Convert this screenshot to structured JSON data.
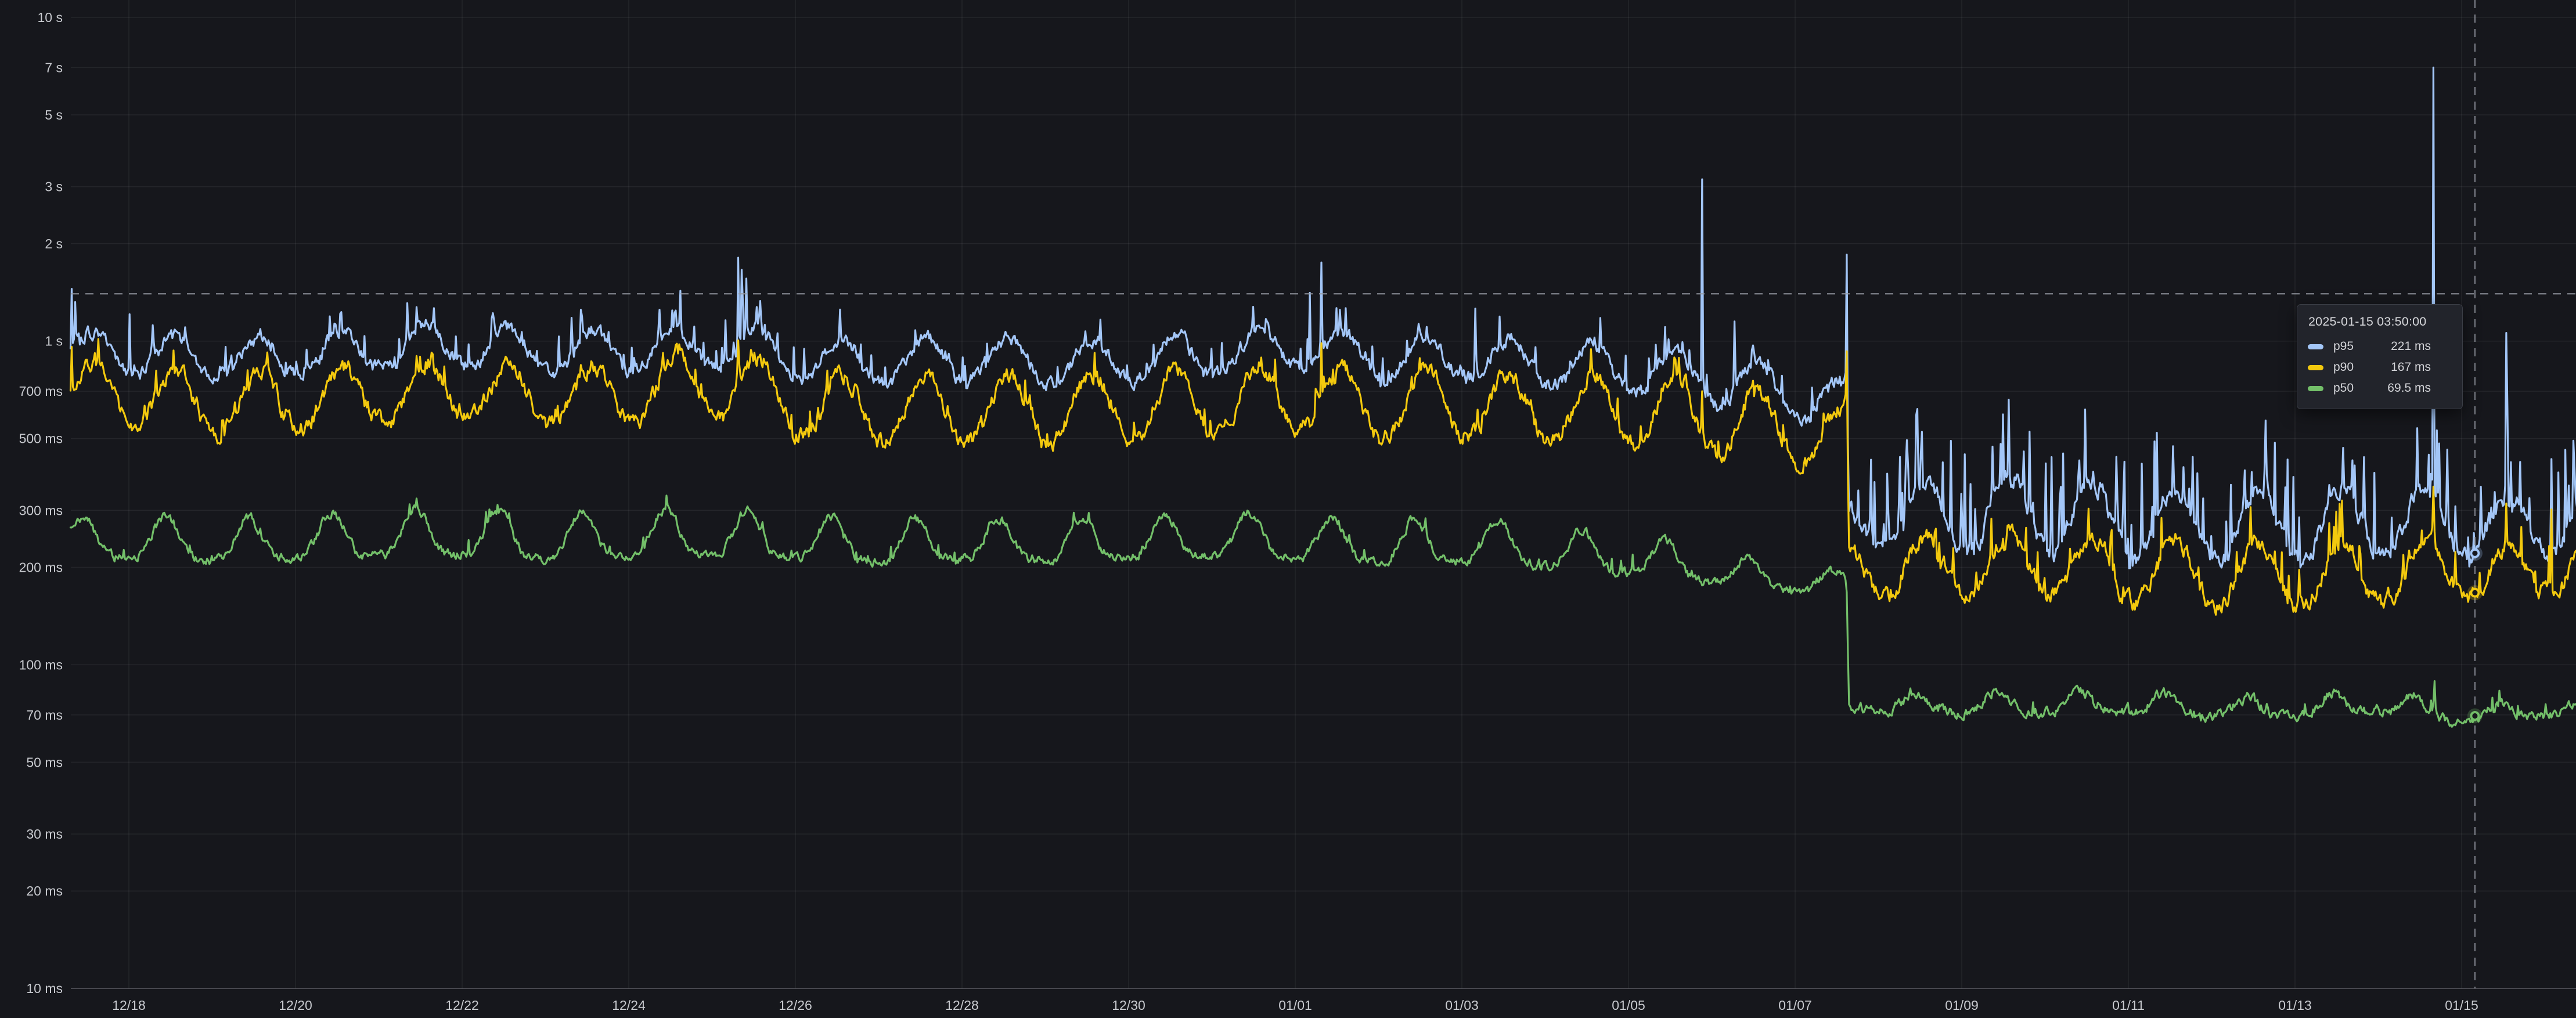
{
  "panel": {
    "background": "#16171c",
    "grid_color": "rgba(204,204,220,0.08)",
    "axis_line_color": "rgba(204,204,220,0.22)",
    "axis_text_color": "#c7c9ce",
    "crosshair_color": "rgba(150,154,163,0.75)"
  },
  "tooltip": {
    "timestamp": "2025-01-15 03:50:00",
    "rows": [
      {
        "label": "p95",
        "value": "221 ms",
        "ms": 221,
        "color": "#a3c6f7"
      },
      {
        "label": "p90",
        "value": "167 ms",
        "ms": 167,
        "color": "#f3c90e"
      },
      {
        "label": "p50",
        "value": "69.5 ms",
        "ms": 69.5,
        "color": "#73bf69"
      }
    ]
  },
  "crosshair": {
    "hour": 699.83,
    "y_ms": 1400,
    "time_label": "2025-01-15 03:50:00"
  },
  "chart_data": {
    "type": "line",
    "title": "",
    "unit": "ms",
    "sample_interval_minutes": 20,
    "time_start_hour": 7.2,
    "time_end_hour": 729.5,
    "step_change_hour": 519,
    "x_axis": {
      "start_date": "2024-12-17",
      "ticks": [
        {
          "label": "12/18",
          "day": 1
        },
        {
          "label": "12/20",
          "day": 3
        },
        {
          "label": "12/22",
          "day": 5
        },
        {
          "label": "12/24",
          "day": 7
        },
        {
          "label": "12/26",
          "day": 9
        },
        {
          "label": "12/28",
          "day": 11
        },
        {
          "label": "12/30",
          "day": 13
        },
        {
          "label": "01/01",
          "day": 15
        },
        {
          "label": "01/03",
          "day": 17
        },
        {
          "label": "01/05",
          "day": 19
        },
        {
          "label": "01/07",
          "day": 21
        },
        {
          "label": "01/09",
          "day": 23
        },
        {
          "label": "01/11",
          "day": 25
        },
        {
          "label": "01/13",
          "day": 27
        },
        {
          "label": "01/15",
          "day": 29
        }
      ]
    },
    "y_axis": {
      "scale": "log10",
      "min_ms": 10,
      "max_ms": 10000,
      "ticks": [
        {
          "label": "10 s",
          "ms": 10000
        },
        {
          "label": "7 s",
          "ms": 7000
        },
        {
          "label": "5 s",
          "ms": 5000
        },
        {
          "label": "3 s",
          "ms": 3000
        },
        {
          "label": "2 s",
          "ms": 2000
        },
        {
          "label": "1 s",
          "ms": 1000
        },
        {
          "label": "700 ms",
          "ms": 700
        },
        {
          "label": "500 ms",
          "ms": 500
        },
        {
          "label": "300 ms",
          "ms": 300
        },
        {
          "label": "200 ms",
          "ms": 200
        },
        {
          "label": "100 ms",
          "ms": 100
        },
        {
          "label": "70 ms",
          "ms": 70
        },
        {
          "label": "50 ms",
          "ms": 50
        },
        {
          "label": "30 ms",
          "ms": 30
        },
        {
          "label": "20 ms",
          "ms": 20
        },
        {
          "label": "10 ms",
          "ms": 10
        }
      ]
    },
    "series": [
      {
        "name": "p95",
        "color": "#a3c6f7",
        "width": 3.2,
        "shape": {
          "peak_hour": 13.5,
          "exp": 1.3
        },
        "noise": {
          "pre": {
            "jitter": 0.05,
            "burst_p": 0.1,
            "burst_amp": 0.12
          },
          "post": {
            "jitter": 0.065,
            "burst_p": 0.17,
            "burst_amp": 0.45
          }
        },
        "envelope": [
          [
            0,
            830,
            1120
          ],
          [
            24,
            800,
            1060
          ],
          [
            48,
            775,
            1020
          ],
          [
            72,
            790,
            1060
          ],
          [
            96,
            820,
            1100
          ],
          [
            120,
            845,
            1150
          ],
          [
            144,
            800,
            1050
          ],
          [
            168,
            810,
            1090
          ],
          [
            192,
            830,
            1130
          ],
          [
            216,
            780,
            1050
          ],
          [
            240,
            745,
            1000
          ],
          [
            264,
            760,
            1020
          ],
          [
            288,
            745,
            1000
          ],
          [
            312,
            760,
            1020
          ],
          [
            336,
            780,
            1060
          ],
          [
            360,
            820,
            1120
          ],
          [
            384,
            760,
            1030
          ],
          [
            408,
            770,
            1050
          ],
          [
            432,
            745,
            1000
          ],
          [
            456,
            705,
            970
          ],
          [
            480,
            640,
            940
          ],
          [
            504,
            565,
            810
          ],
          [
            518.8,
            555,
            780
          ],
          [
            519.4,
            238,
            312
          ],
          [
            528,
            228,
            330
          ],
          [
            552,
            222,
            385
          ],
          [
            576,
            226,
            400
          ],
          [
            600,
            215,
            355
          ],
          [
            624,
            213,
            345
          ],
          [
            648,
            210,
            335
          ],
          [
            672,
            215,
            355
          ],
          [
            696,
            219,
            355
          ],
          [
            700,
            217,
            330
          ],
          [
            720,
            222,
            335
          ],
          [
            730,
            230,
            345
          ]
        ],
        "spikes": [
          [
            7.6,
            1450
          ],
          [
            8.4,
            1320
          ],
          [
            24.2,
            1210
          ],
          [
            31,
            1120
          ],
          [
            104.3,
            1310
          ],
          [
            129,
            1220
          ],
          [
            151.5,
            1180
          ],
          [
            177,
            1250
          ],
          [
            183,
            1430
          ],
          [
            196,
            1160
          ],
          [
            199.6,
            1810
          ],
          [
            200.4,
            1660
          ],
          [
            201.7,
            1560
          ],
          [
            206,
            1330
          ],
          [
            352,
            1150
          ],
          [
            364.3,
            1410
          ],
          [
            367.5,
            1750
          ],
          [
            373,
            1250
          ],
          [
            412,
            1260
          ],
          [
            477.35,
            3160
          ],
          [
            486.5,
            1150
          ],
          [
            492,
            970
          ],
          [
            518.9,
            1850
          ],
          [
            526,
            430
          ],
          [
            536,
            412
          ],
          [
            549,
            492
          ],
          [
            553,
            447
          ],
          [
            561,
            472
          ],
          [
            565.4,
            508
          ],
          [
            570,
            456
          ],
          [
            578,
            438
          ],
          [
            586,
            428
          ],
          [
            604,
            418
          ],
          [
            616,
            408
          ],
          [
            640,
            388
          ],
          [
            662,
            468
          ],
          [
            668,
            438
          ],
          [
            688,
            7000
          ],
          [
            689,
            530
          ],
          [
            692,
            462
          ],
          [
            708.7,
            1060
          ],
          [
            722,
            432
          ],
          [
            728.6,
            405
          ]
        ]
      },
      {
        "name": "p90",
        "color": "#f3c90e",
        "width": 3.2,
        "shape": {
          "peak_hour": 13.5,
          "exp": 1.3
        },
        "noise": {
          "pre": {
            "jitter": 0.06,
            "burst_p": 0.08,
            "burst_amp": 0.09
          },
          "post": {
            "jitter": 0.06,
            "burst_p": 0.1,
            "burst_amp": 0.18
          }
        },
        "envelope": [
          [
            0,
            600,
            880
          ],
          [
            24,
            560,
            830
          ],
          [
            48,
            520,
            800
          ],
          [
            72,
            545,
            820
          ],
          [
            96,
            565,
            850
          ],
          [
            120,
            580,
            870
          ],
          [
            144,
            555,
            820
          ],
          [
            168,
            570,
            860
          ],
          [
            192,
            590,
            990
          ],
          [
            216,
            510,
            820
          ],
          [
            240,
            485,
            780
          ],
          [
            264,
            500,
            800
          ],
          [
            288,
            490,
            790
          ],
          [
            312,
            505,
            810
          ],
          [
            336,
            520,
            830
          ],
          [
            360,
            545,
            850
          ],
          [
            384,
            500,
            800
          ],
          [
            408,
            510,
            820
          ],
          [
            432,
            490,
            780
          ],
          [
            456,
            480,
            810
          ],
          [
            480,
            445,
            790
          ],
          [
            504,
            420,
            650
          ],
          [
            518.8,
            415,
            630
          ],
          [
            519.4,
            172,
            242
          ],
          [
            528,
            166,
            245
          ],
          [
            552,
            160,
            252
          ],
          [
            576,
            164,
            258
          ],
          [
            600,
            157,
            242
          ],
          [
            624,
            154,
            237
          ],
          [
            648,
            151,
            232
          ],
          [
            672,
            155,
            242
          ],
          [
            696,
            162,
            240
          ],
          [
            700,
            161,
            234
          ],
          [
            720,
            167,
            240
          ],
          [
            730,
            172,
            245
          ]
        ],
        "spikes": [
          [
            7.6,
            960
          ],
          [
            183,
            930
          ],
          [
            199.6,
            1005
          ],
          [
            367.5,
            985
          ],
          [
            477.35,
            700
          ],
          [
            518.9,
            930
          ],
          [
            688,
            355
          ],
          [
            708.7,
            315
          ],
          [
            722,
            302
          ]
        ]
      },
      {
        "name": "p50",
        "color": "#73bf69",
        "width": 3.2,
        "shape": {
          "peak_hour": 10.5,
          "exp": 2.4
        },
        "noise": {
          "pre": {
            "jitter": 0.032,
            "burst_p": 0.05,
            "burst_amp": 0.05
          },
          "post": {
            "jitter": 0.035,
            "burst_p": 0.05,
            "burst_amp": 0.06
          }
        },
        "envelope": [
          [
            0,
            213,
            285
          ],
          [
            24,
            216,
            290
          ],
          [
            48,
            211,
            278
          ],
          [
            72,
            214,
            292
          ],
          [
            96,
            219,
            300
          ],
          [
            120,
            221,
            308
          ],
          [
            144,
            214,
            288
          ],
          [
            168,
            217,
            298
          ],
          [
            192,
            221,
            310
          ],
          [
            216,
            214,
            290
          ],
          [
            240,
            209,
            278
          ],
          [
            264,
            213,
            286
          ],
          [
            288,
            211,
            281
          ],
          [
            312,
            214,
            288
          ],
          [
            336,
            217,
            294
          ],
          [
            360,
            215,
            292
          ],
          [
            384,
            209,
            279
          ],
          [
            408,
            211,
            284
          ],
          [
            432,
            203,
            268
          ],
          [
            456,
            192,
            252
          ],
          [
            480,
            179,
            230
          ],
          [
            504,
            167,
            200
          ],
          [
            518.8,
            165,
            195
          ],
          [
            519.4,
            73,
            83
          ],
          [
            528,
            72,
            81
          ],
          [
            552,
            71,
            83
          ],
          [
            576,
            72,
            84
          ],
          [
            600,
            72,
            82
          ],
          [
            624,
            70,
            80
          ],
          [
            648,
            69,
            79
          ],
          [
            672,
            72,
            84
          ],
          [
            696,
            66.5,
            76
          ],
          [
            700,
            66.5,
            75
          ],
          [
            720,
            70,
            77
          ],
          [
            730,
            71,
            78
          ]
        ],
        "spikes": [
          [
            688.1,
            89
          ]
        ]
      }
    ]
  }
}
